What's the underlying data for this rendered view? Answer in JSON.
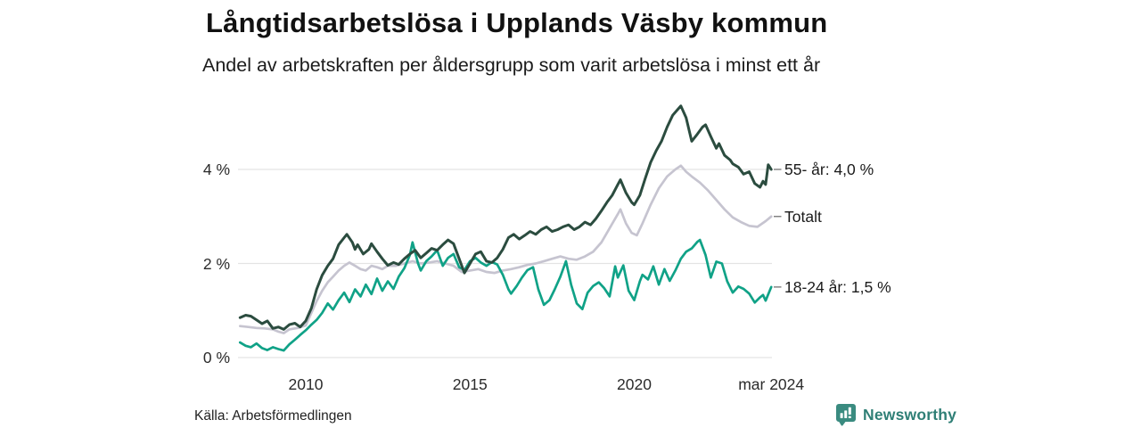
{
  "header": {
    "title": "Långtidsarbetslösa i Upplands Väsby kommun",
    "subtitle": "Andel av arbetskraften per åldersgrupp som varit arbetslösa i minst ett år"
  },
  "footer": {
    "source": "Källa: Arbetsförmedlingen",
    "brand": "Newsworthy",
    "brand_icon": "bar-chart-speech-bubble-icon",
    "brand_color": "#2f7f76",
    "logo_fill": "#3a8b80"
  },
  "colors": {
    "grid": "#e4e4e4",
    "end_tick": "#7c7c7c",
    "text": "#1b1b1b",
    "background": "#ffffff"
  },
  "chart_data": {
    "type": "line",
    "title": "Långtidsarbetslösa i Upplands Väsby kommun",
    "subtitle": "Andel av arbetskraften per åldersgrupp som varit arbetslösa i minst ett år",
    "xlabel": "",
    "ylabel": "",
    "unit": "%",
    "grid": "horizontal",
    "legend_position": "right-of-line-ends",
    "xlim": [
      2008.0,
      2024.33
    ],
    "ylim": [
      0,
      5.6
    ],
    "x_ticks": [
      {
        "label": "2010",
        "value": 2010
      },
      {
        "label": "2015",
        "value": 2015
      },
      {
        "label": "2020",
        "value": 2020
      },
      {
        "label": "mar 2024",
        "value": 2024.17
      }
    ],
    "y_ticks": [
      {
        "label": "0 %",
        "value": 0
      },
      {
        "label": "2 %",
        "value": 2
      },
      {
        "label": "4 %",
        "value": 4
      }
    ],
    "source": "Källa: Arbetsförmedlingen",
    "series": [
      {
        "name": "55- år",
        "end_label": "55- år: 4,0 %",
        "end_value": 4.0,
        "color": "#2b4c3f",
        "z": 3,
        "points": [
          [
            2008.0,
            0.85
          ],
          [
            2008.17,
            0.9
          ],
          [
            2008.33,
            0.88
          ],
          [
            2008.5,
            0.8
          ],
          [
            2008.67,
            0.72
          ],
          [
            2008.83,
            0.78
          ],
          [
            2009.0,
            0.62
          ],
          [
            2009.17,
            0.65
          ],
          [
            2009.33,
            0.6
          ],
          [
            2009.5,
            0.7
          ],
          [
            2009.67,
            0.73
          ],
          [
            2009.83,
            0.65
          ],
          [
            2010.0,
            0.78
          ],
          [
            2010.17,
            1.05
          ],
          [
            2010.33,
            1.45
          ],
          [
            2010.5,
            1.75
          ],
          [
            2010.67,
            1.95
          ],
          [
            2010.83,
            2.1
          ],
          [
            2011.0,
            2.4
          ],
          [
            2011.17,
            2.55
          ],
          [
            2011.25,
            2.62
          ],
          [
            2011.42,
            2.45
          ],
          [
            2011.5,
            2.3
          ],
          [
            2011.58,
            2.4
          ],
          [
            2011.75,
            2.2
          ],
          [
            2011.92,
            2.3
          ],
          [
            2012.0,
            2.42
          ],
          [
            2012.17,
            2.25
          ],
          [
            2012.33,
            2.1
          ],
          [
            2012.5,
            1.96
          ],
          [
            2012.67,
            2.02
          ],
          [
            2012.83,
            1.98
          ],
          [
            2013.0,
            2.1
          ],
          [
            2013.17,
            2.2
          ],
          [
            2013.33,
            2.28
          ],
          [
            2013.5,
            2.12
          ],
          [
            2013.67,
            2.22
          ],
          [
            2013.83,
            2.32
          ],
          [
            2014.0,
            2.28
          ],
          [
            2014.17,
            2.4
          ],
          [
            2014.33,
            2.5
          ],
          [
            2014.5,
            2.42
          ],
          [
            2014.67,
            2.1
          ],
          [
            2014.83,
            1.8
          ],
          [
            2015.0,
            2.0
          ],
          [
            2015.17,
            2.2
          ],
          [
            2015.33,
            2.25
          ],
          [
            2015.5,
            2.05
          ],
          [
            2015.67,
            2.02
          ],
          [
            2015.83,
            2.12
          ],
          [
            2016.0,
            2.3
          ],
          [
            2016.17,
            2.55
          ],
          [
            2016.33,
            2.62
          ],
          [
            2016.5,
            2.52
          ],
          [
            2016.67,
            2.6
          ],
          [
            2016.83,
            2.68
          ],
          [
            2017.0,
            2.62
          ],
          [
            2017.17,
            2.72
          ],
          [
            2017.33,
            2.78
          ],
          [
            2017.5,
            2.68
          ],
          [
            2017.67,
            2.72
          ],
          [
            2017.83,
            2.78
          ],
          [
            2018.0,
            2.82
          ],
          [
            2018.17,
            2.72
          ],
          [
            2018.33,
            2.78
          ],
          [
            2018.5,
            2.88
          ],
          [
            2018.67,
            2.82
          ],
          [
            2018.83,
            2.95
          ],
          [
            2019.0,
            3.12
          ],
          [
            2019.17,
            3.3
          ],
          [
            2019.33,
            3.45
          ],
          [
            2019.5,
            3.68
          ],
          [
            2019.58,
            3.78
          ],
          [
            2019.75,
            3.5
          ],
          [
            2019.92,
            3.3
          ],
          [
            2020.0,
            3.25
          ],
          [
            2020.17,
            3.45
          ],
          [
            2020.33,
            3.8
          ],
          [
            2020.5,
            4.15
          ],
          [
            2020.67,
            4.4
          ],
          [
            2020.83,
            4.6
          ],
          [
            2021.0,
            4.9
          ],
          [
            2021.17,
            5.15
          ],
          [
            2021.33,
            5.28
          ],
          [
            2021.42,
            5.35
          ],
          [
            2021.58,
            5.1
          ],
          [
            2021.75,
            4.6
          ],
          [
            2021.92,
            4.75
          ],
          [
            2022.08,
            4.9
          ],
          [
            2022.17,
            4.95
          ],
          [
            2022.33,
            4.7
          ],
          [
            2022.5,
            4.45
          ],
          [
            2022.58,
            4.55
          ],
          [
            2022.75,
            4.3
          ],
          [
            2022.92,
            4.2
          ],
          [
            2023.0,
            4.12
          ],
          [
            2023.17,
            4.05
          ],
          [
            2023.33,
            3.9
          ],
          [
            2023.5,
            3.95
          ],
          [
            2023.67,
            3.7
          ],
          [
            2023.83,
            3.62
          ],
          [
            2023.92,
            3.75
          ],
          [
            2024.0,
            3.68
          ],
          [
            2024.08,
            4.1
          ],
          [
            2024.17,
            4.0
          ]
        ]
      },
      {
        "name": "Totalt",
        "end_label": "Totalt",
        "end_value": 3.0,
        "color": "#c6c4d0",
        "z": 1,
        "points": [
          [
            2008.0,
            0.67
          ],
          [
            2008.25,
            0.65
          ],
          [
            2008.5,
            0.63
          ],
          [
            2008.75,
            0.62
          ],
          [
            2009.0,
            0.6
          ],
          [
            2009.17,
            0.55
          ],
          [
            2009.33,
            0.52
          ],
          [
            2009.5,
            0.6
          ],
          [
            2009.75,
            0.63
          ],
          [
            2010.0,
            0.68
          ],
          [
            2010.17,
            0.95
          ],
          [
            2010.33,
            1.2
          ],
          [
            2010.5,
            1.42
          ],
          [
            2010.67,
            1.6
          ],
          [
            2010.83,
            1.72
          ],
          [
            2011.0,
            1.85
          ],
          [
            2011.17,
            1.95
          ],
          [
            2011.33,
            2.02
          ],
          [
            2011.5,
            1.95
          ],
          [
            2011.67,
            1.88
          ],
          [
            2011.83,
            1.85
          ],
          [
            2012.0,
            1.95
          ],
          [
            2012.17,
            1.92
          ],
          [
            2012.33,
            1.88
          ],
          [
            2012.5,
            1.95
          ],
          [
            2012.75,
            1.95
          ],
          [
            2013.0,
            2.0
          ],
          [
            2013.25,
            2.05
          ],
          [
            2013.5,
            2.0
          ],
          [
            2013.75,
            2.02
          ],
          [
            2014.0,
            2.05
          ],
          [
            2014.25,
            2.0
          ],
          [
            2014.5,
            1.95
          ],
          [
            2014.75,
            1.82
          ],
          [
            2015.0,
            1.85
          ],
          [
            2015.25,
            1.88
          ],
          [
            2015.5,
            1.82
          ],
          [
            2015.75,
            1.8
          ],
          [
            2016.0,
            1.85
          ],
          [
            2016.25,
            1.88
          ],
          [
            2016.5,
            1.92
          ],
          [
            2016.75,
            1.97
          ],
          [
            2017.0,
            2.0
          ],
          [
            2017.25,
            2.05
          ],
          [
            2017.5,
            2.1
          ],
          [
            2017.75,
            2.15
          ],
          [
            2018.0,
            2.1
          ],
          [
            2018.25,
            2.08
          ],
          [
            2018.5,
            2.15
          ],
          [
            2018.75,
            2.25
          ],
          [
            2019.0,
            2.45
          ],
          [
            2019.25,
            2.75
          ],
          [
            2019.5,
            3.05
          ],
          [
            2019.58,
            3.15
          ],
          [
            2019.75,
            2.85
          ],
          [
            2019.92,
            2.65
          ],
          [
            2020.08,
            2.6
          ],
          [
            2020.25,
            2.85
          ],
          [
            2020.5,
            3.25
          ],
          [
            2020.75,
            3.6
          ],
          [
            2021.0,
            3.85
          ],
          [
            2021.25,
            4.0
          ],
          [
            2021.42,
            4.08
          ],
          [
            2021.58,
            3.95
          ],
          [
            2021.75,
            3.85
          ],
          [
            2022.0,
            3.72
          ],
          [
            2022.25,
            3.55
          ],
          [
            2022.5,
            3.35
          ],
          [
            2022.75,
            3.15
          ],
          [
            2023.0,
            2.98
          ],
          [
            2023.25,
            2.88
          ],
          [
            2023.5,
            2.8
          ],
          [
            2023.75,
            2.78
          ],
          [
            2024.0,
            2.9
          ],
          [
            2024.17,
            3.0
          ]
        ]
      },
      {
        "name": "18-24 år",
        "end_label": "18-24 år: 1,5 %",
        "end_value": 1.5,
        "color": "#10a287",
        "z": 2,
        "points": [
          [
            2008.0,
            0.32
          ],
          [
            2008.17,
            0.25
          ],
          [
            2008.33,
            0.22
          ],
          [
            2008.5,
            0.3
          ],
          [
            2008.67,
            0.2
          ],
          [
            2008.83,
            0.16
          ],
          [
            2009.0,
            0.22
          ],
          [
            2009.17,
            0.18
          ],
          [
            2009.33,
            0.15
          ],
          [
            2009.5,
            0.28
          ],
          [
            2009.67,
            0.38
          ],
          [
            2009.83,
            0.48
          ],
          [
            2010.0,
            0.58
          ],
          [
            2010.17,
            0.7
          ],
          [
            2010.33,
            0.8
          ],
          [
            2010.5,
            0.95
          ],
          [
            2010.67,
            1.15
          ],
          [
            2010.83,
            1.02
          ],
          [
            2011.0,
            1.22
          ],
          [
            2011.17,
            1.38
          ],
          [
            2011.33,
            1.18
          ],
          [
            2011.5,
            1.45
          ],
          [
            2011.67,
            1.3
          ],
          [
            2011.83,
            1.55
          ],
          [
            2012.0,
            1.35
          ],
          [
            2012.17,
            1.68
          ],
          [
            2012.33,
            1.42
          ],
          [
            2012.5,
            1.62
          ],
          [
            2012.67,
            1.46
          ],
          [
            2012.83,
            1.72
          ],
          [
            2013.0,
            1.9
          ],
          [
            2013.17,
            2.18
          ],
          [
            2013.25,
            2.45
          ],
          [
            2013.42,
            2.0
          ],
          [
            2013.5,
            1.85
          ],
          [
            2013.67,
            2.05
          ],
          [
            2013.83,
            2.15
          ],
          [
            2014.0,
            2.28
          ],
          [
            2014.17,
            1.95
          ],
          [
            2014.33,
            2.12
          ],
          [
            2014.5,
            2.2
          ],
          [
            2014.67,
            1.92
          ],
          [
            2014.83,
            1.86
          ],
          [
            2015.0,
            2.05
          ],
          [
            2015.17,
            2.12
          ],
          [
            2015.33,
            2.02
          ],
          [
            2015.5,
            1.95
          ],
          [
            2015.67,
            2.03
          ],
          [
            2015.83,
            1.98
          ],
          [
            2016.0,
            1.76
          ],
          [
            2016.17,
            1.45
          ],
          [
            2016.25,
            1.36
          ],
          [
            2016.42,
            1.52
          ],
          [
            2016.58,
            1.7
          ],
          [
            2016.75,
            1.86
          ],
          [
            2016.92,
            1.92
          ],
          [
            2017.08,
            1.45
          ],
          [
            2017.25,
            1.12
          ],
          [
            2017.42,
            1.22
          ],
          [
            2017.58,
            1.45
          ],
          [
            2017.75,
            1.72
          ],
          [
            2017.92,
            2.05
          ],
          [
            2018.08,
            1.55
          ],
          [
            2018.25,
            1.15
          ],
          [
            2018.42,
            1.03
          ],
          [
            2018.58,
            1.38
          ],
          [
            2018.75,
            1.52
          ],
          [
            2018.92,
            1.6
          ],
          [
            2019.08,
            1.48
          ],
          [
            2019.25,
            1.3
          ],
          [
            2019.42,
            1.94
          ],
          [
            2019.5,
            1.7
          ],
          [
            2019.67,
            1.96
          ],
          [
            2019.83,
            1.42
          ],
          [
            2020.0,
            1.22
          ],
          [
            2020.17,
            1.62
          ],
          [
            2020.25,
            1.76
          ],
          [
            2020.42,
            1.66
          ],
          [
            2020.58,
            1.94
          ],
          [
            2020.75,
            1.55
          ],
          [
            2020.92,
            1.88
          ],
          [
            2021.08,
            1.63
          ],
          [
            2021.25,
            1.85
          ],
          [
            2021.42,
            2.1
          ],
          [
            2021.58,
            2.25
          ],
          [
            2021.75,
            2.32
          ],
          [
            2021.92,
            2.46
          ],
          [
            2022.0,
            2.5
          ],
          [
            2022.17,
            2.18
          ],
          [
            2022.33,
            1.7
          ],
          [
            2022.5,
            2.04
          ],
          [
            2022.67,
            2.0
          ],
          [
            2022.83,
            1.62
          ],
          [
            2023.0,
            1.38
          ],
          [
            2023.17,
            1.51
          ],
          [
            2023.33,
            1.46
          ],
          [
            2023.5,
            1.36
          ],
          [
            2023.67,
            1.17
          ],
          [
            2023.83,
            1.28
          ],
          [
            2023.92,
            1.33
          ],
          [
            2024.0,
            1.21
          ],
          [
            2024.17,
            1.5
          ]
        ]
      }
    ]
  }
}
